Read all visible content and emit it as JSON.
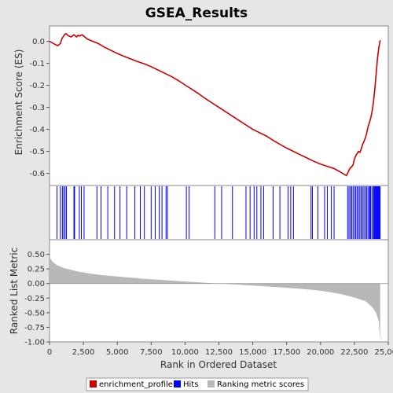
{
  "chart_data": {
    "type": "line",
    "title": "GSEA_Results",
    "colors": {
      "enrichment_profile": "#cc0000",
      "hits": "#0000ff",
      "ranking_metric": "#b8b8b8",
      "zero_line": "#888888"
    },
    "legend": {
      "placement": "bottom",
      "entries": [
        "enrichment_profile",
        "Hits",
        "Ranking metric scores"
      ]
    },
    "x_axis": {
      "label": "Rank in Ordered Dataset",
      "range": [
        0,
        25000
      ],
      "ticks": [
        "0",
        "2,500",
        "5,000",
        "7,500",
        "10,000",
        "12,500",
        "15,000",
        "17,500",
        "20,000",
        "22,500",
        "25,000"
      ]
    },
    "panels": {
      "enrichment": {
        "ylabel": "Enrichment Score (ES)",
        "ylim": [
          -0.655,
          0.07
        ],
        "yticks": [
          "0.0",
          "-0.1",
          "-0.2",
          "-0.3",
          "-0.4",
          "-0.5",
          "-0.6"
        ],
        "series": [
          {
            "name": "enrichment_profile",
            "x": [
              0,
              300,
              600,
              800,
              900,
              1000,
              1100,
              1200,
              1400,
              1600,
              1800,
              1900,
              2000,
              2100,
              2200,
              2400,
              2600,
              2800,
              3200,
              3600,
              4000,
              4500,
              5000,
              5500,
              6000,
              6500,
              7000,
              7500,
              8000,
              8500,
              9000,
              9500,
              10000,
              10500,
              11000,
              11500,
              12000,
              12500,
              13000,
              13500,
              14000,
              14500,
              15000,
              15500,
              16000,
              16500,
              17000,
              17500,
              18000,
              18500,
              19000,
              19500,
              20000,
              20500,
              21000,
              21500,
              21900,
              22000,
              22100,
              22200,
              22300,
              22400,
              22500,
              22600,
              22700,
              22800,
              22900,
              23000,
              23100,
              23200,
              23300,
              23400,
              23500,
              23600,
              23700,
              23800,
              23900,
              24000,
              24100,
              24200,
              24300,
              24400
            ],
            "y": [
              0.0,
              -0.01,
              -0.02,
              -0.01,
              0.01,
              0.02,
              0.03,
              0.035,
              0.025,
              0.02,
              0.03,
              0.025,
              0.02,
              0.028,
              0.024,
              0.03,
              0.02,
              0.01,
              0.0,
              -0.01,
              -0.025,
              -0.04,
              -0.055,
              -0.068,
              -0.08,
              -0.092,
              -0.102,
              -0.115,
              -0.13,
              -0.145,
              -0.16,
              -0.178,
              -0.198,
              -0.218,
              -0.238,
              -0.26,
              -0.28,
              -0.3,
              -0.32,
              -0.34,
              -0.36,
              -0.38,
              -0.4,
              -0.415,
              -0.43,
              -0.45,
              -0.468,
              -0.485,
              -0.5,
              -0.515,
              -0.53,
              -0.545,
              -0.558,
              -0.568,
              -0.578,
              -0.595,
              -0.61,
              -0.6,
              -0.585,
              -0.575,
              -0.57,
              -0.56,
              -0.535,
              -0.52,
              -0.51,
              -0.5,
              -0.505,
              -0.49,
              -0.47,
              -0.455,
              -0.44,
              -0.42,
              -0.39,
              -0.37,
              -0.35,
              -0.32,
              -0.28,
              -0.22,
              -0.15,
              -0.08,
              -0.03,
              0.005
            ]
          }
        ]
      },
      "hits": {
        "positions": [
          550,
          800,
          950,
          1050,
          1150,
          1250,
          1800,
          1850,
          2200,
          2350,
          2550,
          3500,
          3800,
          4300,
          4800,
          5200,
          5700,
          6300,
          6700,
          7000,
          7500,
          7800,
          8100,
          8300,
          8600,
          8700,
          10100,
          10300,
          12200,
          12700,
          13500,
          14500,
          14800,
          15100,
          15300,
          15600,
          15800,
          16500,
          17000,
          17600,
          17800,
          18000,
          19300,
          19400,
          19800,
          20300,
          20500,
          20800,
          21000,
          22000,
          22100,
          22200,
          22300,
          22400,
          22500,
          22600,
          22700,
          22800,
          22900,
          23000,
          23100,
          23200,
          23300,
          23400,
          23500,
          23600,
          23650,
          23700,
          23800,
          23900,
          23950,
          24000,
          24050,
          24100,
          24150,
          24200,
          24250,
          24300,
          24350,
          24400
        ]
      },
      "ranking": {
        "ylabel": "Ranked List Metric",
        "ylim": [
          -1.0,
          0.75
        ],
        "yticks": [
          "0.50",
          "0.25",
          "0.00",
          "-0.25",
          "-0.50",
          "-0.75",
          "-1.00"
        ],
        "x": [
          0,
          200,
          500,
          1000,
          2000,
          3000,
          4000,
          5000,
          7000,
          9000,
          11000,
          12500,
          14000,
          16000,
          18000,
          19500,
          20500,
          21500,
          22500,
          23300,
          23800,
          24100,
          24300,
          24400
        ],
        "values": [
          0.45,
          0.38,
          0.32,
          0.27,
          0.21,
          0.17,
          0.14,
          0.12,
          0.08,
          0.05,
          0.02,
          0.0,
          -0.02,
          -0.05,
          -0.08,
          -0.11,
          -0.14,
          -0.18,
          -0.24,
          -0.3,
          -0.4,
          -0.5,
          -0.65,
          -0.98
        ]
      }
    }
  }
}
